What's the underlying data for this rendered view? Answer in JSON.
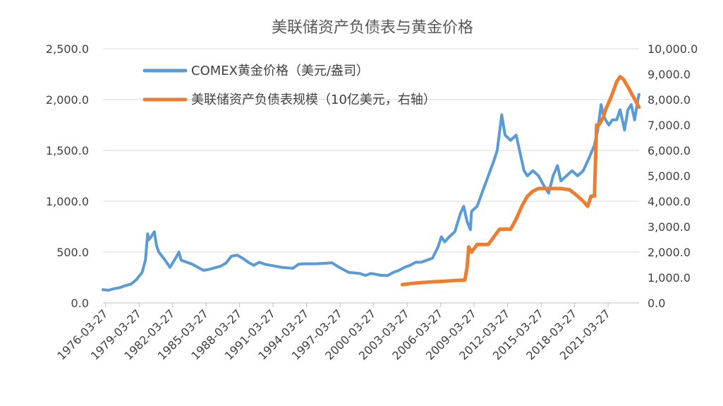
{
  "chart_data": {
    "type": "line",
    "title": "美联储资产负债表与黄金价格",
    "x_tick_labels": [
      "1976-03-27",
      "1979-03-27",
      "1982-03-27",
      "1985-03-27",
      "1988-03-27",
      "1991-03-27",
      "1994-03-27",
      "1997-03-27",
      "2000-03-27",
      "2003-03-27",
      "2006-03-27",
      "2009-03-27",
      "2012-03-27",
      "2015-03-27",
      "2018-03-27",
      "2021-03-27"
    ],
    "x_range": [
      1976.0,
      2024.0
    ],
    "y_left": {
      "range": [
        0,
        2500
      ],
      "ticks": [
        "0.0",
        "500.0",
        "1,000.0",
        "1,500.0",
        "2,000.0",
        "2,500.0"
      ],
      "tick_values": [
        0,
        500,
        1000,
        1500,
        2000,
        2500
      ]
    },
    "y_right": {
      "range": [
        0,
        10000
      ],
      "ticks": [
        "0.0",
        "1,000.0",
        "2,000.0",
        "3,000.0",
        "4,000.0",
        "5,000.0",
        "6,000.0",
        "7,000.0",
        "8,000.0",
        "9,000.0",
        "10,000.0"
      ],
      "tick_values": [
        0,
        1000,
        2000,
        3000,
        4000,
        5000,
        6000,
        7000,
        8000,
        9000,
        10000
      ]
    },
    "grid": true,
    "legend_position": "top-left",
    "series": [
      {
        "name": "COMEX黄金价格（美元/盎司）",
        "axis": "left",
        "color": "#5b9bd5",
        "x": [
          1976.0,
          1976.5,
          1977.0,
          1977.5,
          1978.0,
          1978.5,
          1979.0,
          1979.5,
          1979.8,
          1980.0,
          1980.1,
          1980.3,
          1980.6,
          1980.8,
          1981.0,
          1981.5,
          1982.0,
          1982.5,
          1982.8,
          1983.0,
          1983.5,
          1984.0,
          1984.5,
          1985.0,
          1985.5,
          1986.0,
          1986.5,
          1987.0,
          1987.5,
          1988.0,
          1988.5,
          1989.0,
          1989.5,
          1990.0,
          1990.5,
          1991.0,
          1991.5,
          1992.0,
          1993.0,
          1993.5,
          1994.0,
          1995.0,
          1996.0,
          1996.5,
          1997.0,
          1997.5,
          1998.0,
          1999.0,
          1999.5,
          2000.0,
          2000.5,
          2001.0,
          2001.5,
          2002.0,
          2002.5,
          2003.0,
          2003.5,
          2004.0,
          2004.5,
          2005.0,
          2005.5,
          2006.0,
          2006.3,
          2006.6,
          2007.0,
          2007.5,
          2008.0,
          2008.3,
          2008.6,
          2008.9,
          2009.0,
          2009.5,
          2010.0,
          2010.5,
          2011.0,
          2011.3,
          2011.7,
          2012.0,
          2012.5,
          2013.0,
          2013.3,
          2013.7,
          2014.0,
          2014.5,
          2015.0,
          2015.5,
          2015.9,
          2016.3,
          2016.7,
          2017.0,
          2017.5,
          2018.0,
          2018.5,
          2019.0,
          2019.5,
          2020.0,
          2020.3,
          2020.6,
          2020.8,
          2021.0,
          2021.3,
          2021.6,
          2022.0,
          2022.3,
          2022.7,
          2023.0,
          2023.3,
          2023.6,
          2023.9,
          2024.0
        ],
        "y": [
          130,
          125,
          140,
          150,
          170,
          185,
          230,
          300,
          420,
          680,
          620,
          650,
          700,
          560,
          500,
          430,
          350,
          440,
          500,
          420,
          400,
          380,
          350,
          320,
          330,
          345,
          360,
          390,
          460,
          470,
          440,
          400,
          370,
          400,
          380,
          370,
          360,
          350,
          340,
          380,
          385,
          385,
          390,
          395,
          360,
          330,
          300,
          290,
          270,
          290,
          280,
          270,
          270,
          300,
          320,
          350,
          370,
          400,
          400,
          420,
          440,
          550,
          650,
          600,
          650,
          700,
          880,
          950,
          800,
          720,
          900,
          950,
          1100,
          1250,
          1400,
          1500,
          1850,
          1650,
          1600,
          1650,
          1500,
          1300,
          1250,
          1300,
          1250,
          1150,
          1080,
          1250,
          1350,
          1200,
          1250,
          1300,
          1250,
          1300,
          1420,
          1550,
          1700,
          1950,
          1850,
          1800,
          1750,
          1800,
          1800,
          1900,
          1700,
          1900,
          1950,
          1800,
          2000,
          2050
        ]
      },
      {
        "name": "美联储资产负债表规模（10亿美元，右轴）",
        "axis": "right",
        "color": "#ed7d31",
        "x": [
          2002.8,
          2003.5,
          2004.5,
          2005.5,
          2006.5,
          2007.5,
          2008.4,
          2008.6,
          2008.75,
          2009.0,
          2009.5,
          2010.0,
          2010.5,
          2011.0,
          2011.5,
          2012.0,
          2012.5,
          2013.0,
          2013.5,
          2014.0,
          2014.5,
          2015.0,
          2016.0,
          2017.0,
          2017.8,
          2018.5,
          2019.0,
          2019.4,
          2019.7,
          2020.0,
          2020.2,
          2020.4,
          2020.8,
          2021.0,
          2021.5,
          2022.0,
          2022.3,
          2022.6,
          2023.0,
          2023.5,
          2024.0
        ],
        "y": [
          720,
          760,
          800,
          830,
          850,
          880,
          900,
          1400,
          2200,
          2000,
          2300,
          2300,
          2300,
          2600,
          2900,
          2900,
          2900,
          3300,
          3800,
          4200,
          4400,
          4500,
          4500,
          4500,
          4450,
          4200,
          4000,
          3800,
          4200,
          4200,
          7000,
          7000,
          7300,
          7600,
          8100,
          8700,
          8900,
          8800,
          8500,
          8100,
          7700
        ]
      }
    ]
  }
}
